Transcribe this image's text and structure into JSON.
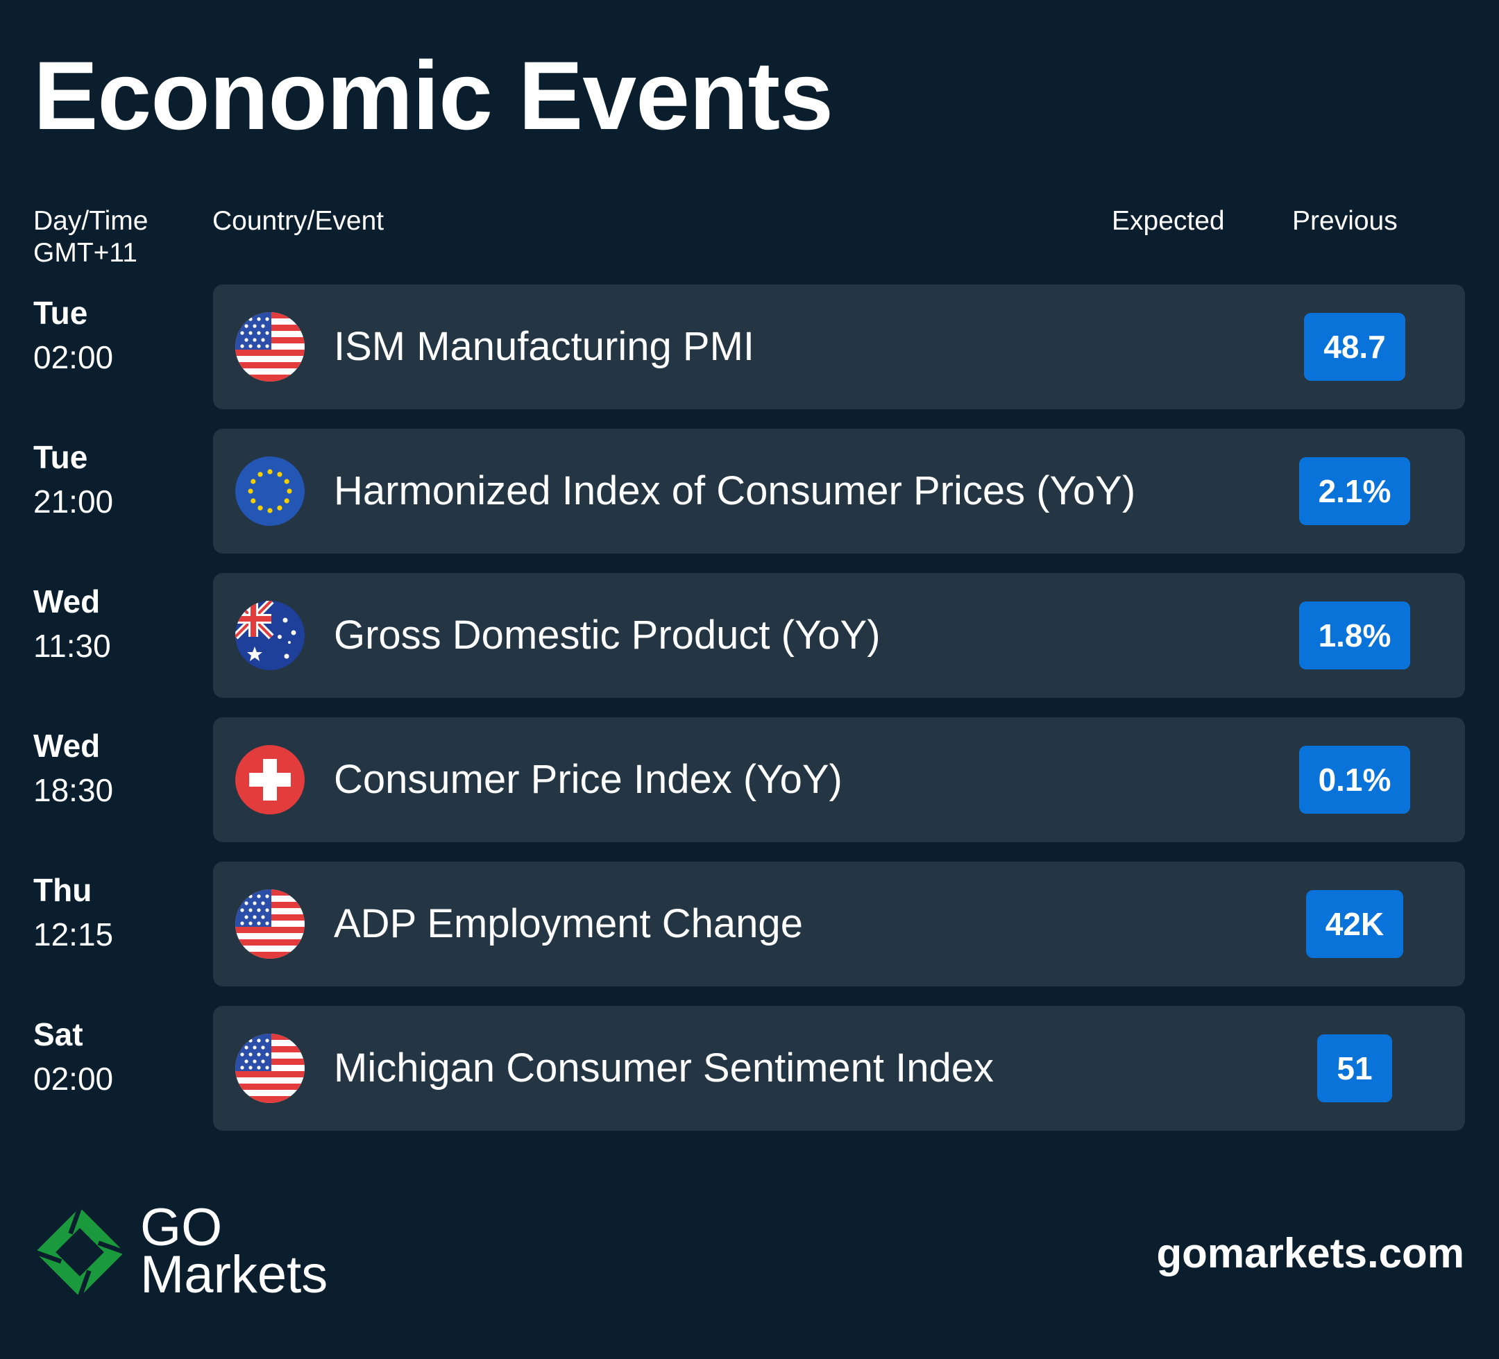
{
  "title": "Economic Events",
  "headers": {
    "day_time_line1": "Day/Time",
    "day_time_line2": "GMT+11",
    "country_event": "Country/Event",
    "expected": "Expected",
    "previous": "Previous"
  },
  "events": [
    {
      "day": "Tue",
      "time": "02:00",
      "flag": "us-flag-icon",
      "name": "ISM Manufacturing PMI",
      "expected": "",
      "previous": "48.7"
    },
    {
      "day": "Tue",
      "time": "21:00",
      "flag": "eu-flag-icon",
      "name": "Harmonized Index of Consumer Prices (YoY)",
      "expected": "",
      "previous": "2.1%"
    },
    {
      "day": "Wed",
      "time": "11:30",
      "flag": "au-flag-icon",
      "name": "Gross Domestic Product (YoY)",
      "expected": "",
      "previous": "1.8%"
    },
    {
      "day": "Wed",
      "time": "18:30",
      "flag": "ch-flag-icon",
      "name": "Consumer Price Index (YoY)",
      "expected": "",
      "previous": "0.1%"
    },
    {
      "day": "Thu",
      "time": "12:15",
      "flag": "us-flag-icon",
      "name": "ADP Employment Change",
      "expected": "",
      "previous": "42K"
    },
    {
      "day": "Sat",
      "time": "02:00",
      "flag": "us-flag-icon",
      "name": "Michigan Consumer Sentiment Index",
      "expected": "",
      "previous": "51"
    }
  ],
  "brand": {
    "line1": "GO",
    "line2": "Markets",
    "website": "gomarkets.com"
  },
  "colors": {
    "background": "#0b1e2d",
    "card": "#243543",
    "badge": "#0a73d9",
    "logo_green": "#1a9a3c"
  }
}
